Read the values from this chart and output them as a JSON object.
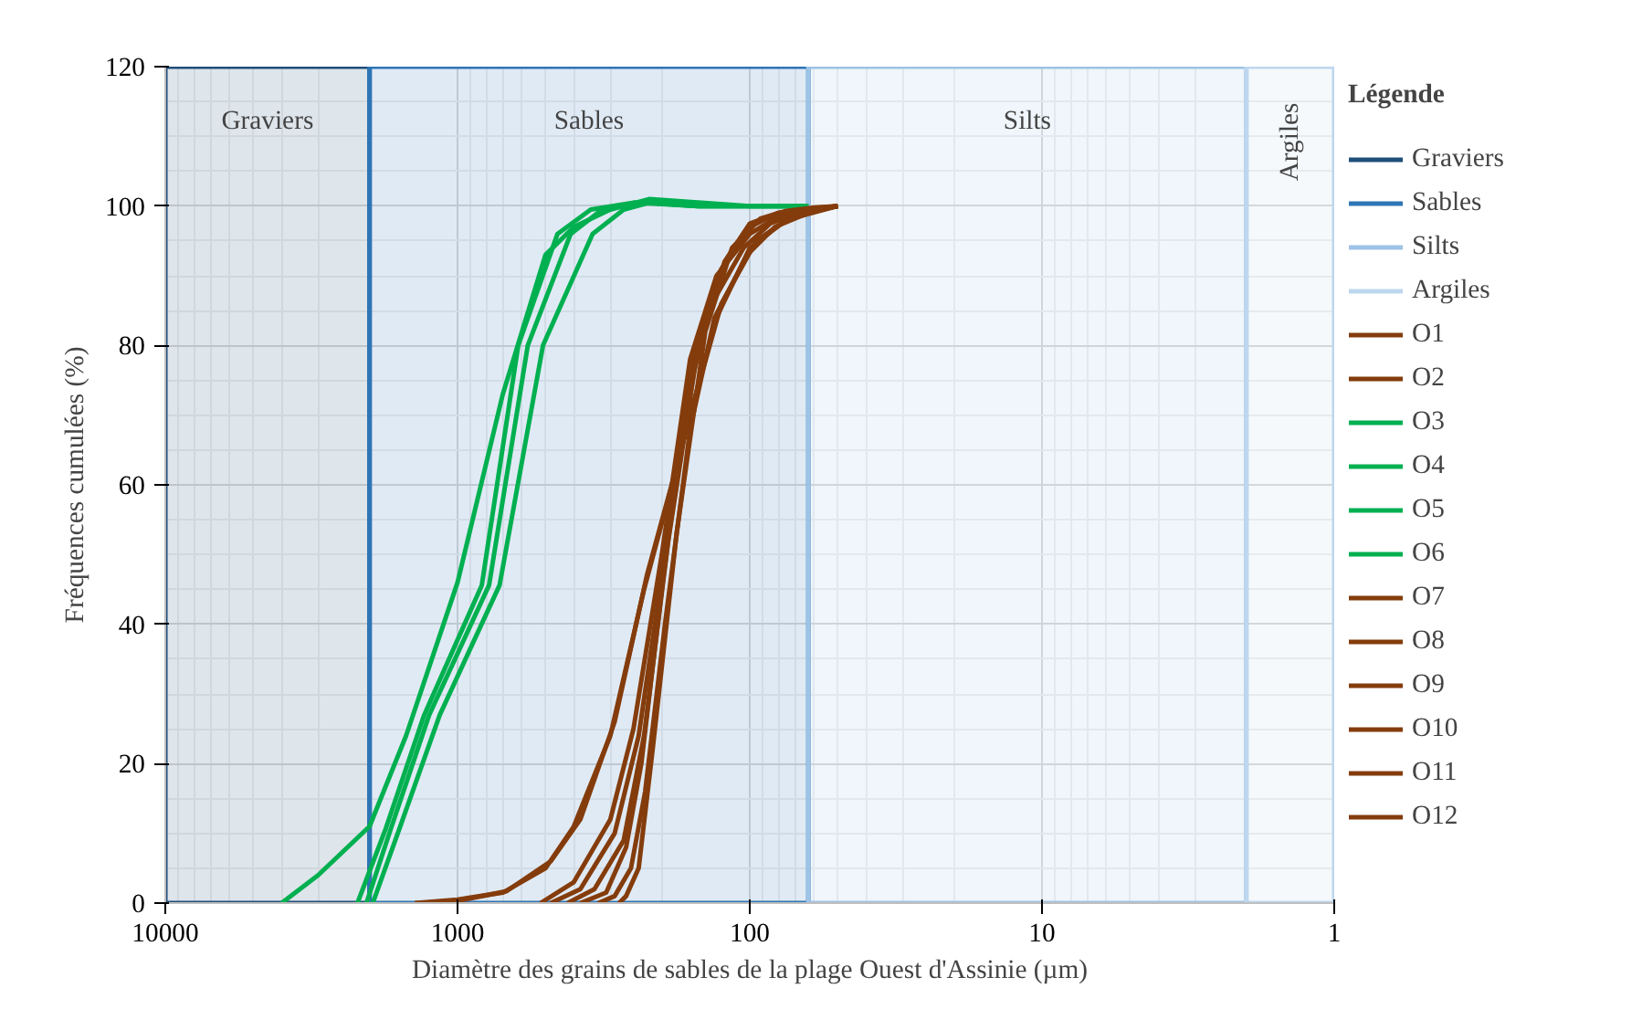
{
  "chart_data": {
    "type": "line",
    "xlabel": "Diamètre des grains de sables de la plage Ouest d'Assinie (µm)",
    "ylabel": "Fréquences cumulées (%)",
    "legend_title": "Légende",
    "log": "x",
    "xlim": [
      10000,
      1
    ],
    "xticks": [
      10000,
      1000,
      100,
      10,
      1
    ],
    "ylim": [
      0,
      120
    ],
    "yticks": [
      0,
      20,
      40,
      60,
      80,
      100,
      120
    ],
    "grid": true,
    "legend": "right",
    "line_style": "solid",
    "marker": "none",
    "bands": [
      {
        "axis": "x",
        "from": 10000,
        "to": 2000,
        "label": "Graviers",
        "color": "#1f4e79"
      },
      {
        "axis": "x",
        "from": 2000,
        "to": 63,
        "label": "Sables",
        "color": "#2e75b6"
      },
      {
        "axis": "x",
        "from": 63,
        "to": 2,
        "label": "Silts",
        "color": "#9dc3e6"
      },
      {
        "axis": "x",
        "from": 2,
        "to": 1,
        "label": "Argiles",
        "color": "#bdd7ee"
      }
    ],
    "series": [
      {
        "name": "O1",
        "color": "#843c0c",
        "x": [
          1400,
          1000,
          700,
          500,
          400,
          300,
          230,
          190,
          160,
          130,
          100,
          75,
          50
        ],
        "values": [
          0,
          0.5,
          1.5,
          5,
          11,
          24,
          45,
          58,
          70,
          84,
          94,
          98,
          100
        ]
      },
      {
        "name": "O2",
        "color": "#843c0c",
        "x": [
          1300,
          950,
          680,
          480,
          380,
          290,
          225,
          185,
          155,
          125,
          95,
          72,
          50
        ],
        "values": [
          0,
          0.5,
          1.7,
          6,
          12,
          26,
          47,
          60,
          72,
          86,
          95,
          98.5,
          100
        ]
      },
      {
        "name": "O3",
        "color": "#00b050",
        "x": [
          4000,
          3000,
          2000,
          1500,
          1000,
          700,
          500,
          400,
          300,
          220,
          150,
          100,
          63
        ],
        "values": [
          0,
          4,
          11,
          24,
          46,
          73,
          93,
          97,
          99.5,
          101,
          100.5,
          100,
          100
        ]
      },
      {
        "name": "O4",
        "color": "#00b050",
        "x": [
          2200,
          1760,
          1300,
          826,
          620,
          455,
          350,
          250,
          150,
          63
        ],
        "values": [
          0,
          10.7,
          27,
          45.6,
          80,
          96,
          99.5,
          100.5,
          100,
          100
        ]
      },
      {
        "name": "O5",
        "color": "#00b050",
        "x": [
          2050,
          1690,
          1250,
          780,
          575,
          410,
          320,
          230,
          150,
          63
        ],
        "values": [
          0,
          10.7,
          27,
          45.6,
          80,
          96,
          99.5,
          100.5,
          100,
          100
        ]
      },
      {
        "name": "O6",
        "color": "#00b050",
        "x": [
          1950,
          1580,
          1150,
          718,
          510,
          345,
          270,
          220,
          150,
          63
        ],
        "values": [
          0,
          10.7,
          27,
          45.6,
          80,
          96,
          99.5,
          100.5,
          100,
          100
        ]
      },
      {
        "name": "O7",
        "color": "#843c0c",
        "x": [
          520,
          400,
          300,
          250,
          200,
          160,
          130,
          100,
          80,
          60,
          50
        ],
        "values": [
          0,
          3,
          12,
          25,
          50,
          78,
          90,
          96,
          98.5,
          99.5,
          100
        ]
      },
      {
        "name": "O8",
        "color": "#843c0c",
        "x": [
          480,
          380,
          290,
          240,
          195,
          155,
          125,
          100,
          80,
          60,
          50
        ],
        "values": [
          0,
          2,
          10,
          24,
          50,
          79,
          91,
          97,
          99,
          99.6,
          100
        ]
      },
      {
        "name": "O9",
        "color": "#843c0c",
        "x": [
          420,
          340,
          270,
          230,
          190,
          150,
          122,
          100,
          80,
          60,
          50
        ],
        "values": [
          0,
          2,
          9,
          24,
          52,
          80,
          92,
          97.5,
          99,
          99.7,
          100
        ]
      },
      {
        "name": "O10",
        "color": "#843c0c",
        "x": [
          380,
          310,
          265,
          235,
          200,
          165,
          135,
          105,
          85,
          65,
          50
        ],
        "values": [
          0,
          1.5,
          8,
          20,
          45,
          72,
          86,
          94,
          97.5,
          99.3,
          100
        ]
      },
      {
        "name": "O11",
        "color": "#843c0c",
        "x": [
          330,
          290,
          255,
          228,
          195,
          160,
          132,
          102,
          82,
          63,
          50
        ],
        "values": [
          0,
          1,
          5,
          16,
          40,
          68,
          84,
          93,
          97,
          99,
          100
        ]
      },
      {
        "name": "O12",
        "color": "#843c0c",
        "x": [
          280,
          265,
          240,
          215,
          178,
          142,
          115,
          92,
          75,
          60,
          50
        ],
        "values": [
          0,
          1,
          5,
          22,
          53,
          82,
          94,
          98.2,
          99.3,
          99.8,
          100
        ]
      }
    ]
  }
}
